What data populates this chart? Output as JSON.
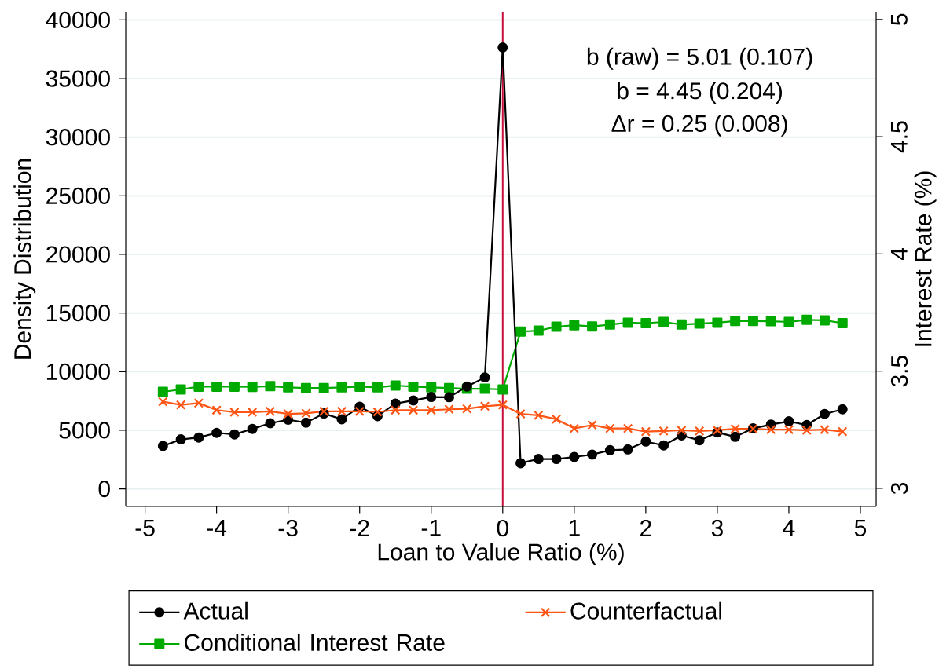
{
  "chart_data": {
    "type": "line",
    "xlabel": "Loan to Value Ratio (%)",
    "ylabel": "Density Distribution",
    "y2label": "Interest Rate (%)",
    "x": [
      -4.75,
      -4.5,
      -4.25,
      -4.0,
      -3.75,
      -3.5,
      -3.25,
      -3.0,
      -2.75,
      -2.5,
      -2.25,
      -2.0,
      -1.75,
      -1.5,
      -1.25,
      -1.0,
      -0.75,
      -0.5,
      -0.25,
      0,
      0.25,
      0.5,
      0.75,
      1.0,
      1.25,
      1.5,
      1.75,
      2.0,
      2.25,
      2.5,
      2.75,
      3.0,
      3.25,
      3.5,
      3.75,
      4.0,
      4.25,
      4.5,
      4.75
    ],
    "series": [
      {
        "name": "Actual",
        "color": "#000000",
        "marker": "circle",
        "values": [
          3660,
          4220,
          4380,
          4780,
          4650,
          5120,
          5600,
          5900,
          5650,
          6430,
          5940,
          7010,
          6210,
          7280,
          7550,
          7840,
          7820,
          8730,
          9510,
          37650,
          2190,
          2550,
          2550,
          2720,
          2920,
          3300,
          3370,
          4040,
          3710,
          4560,
          4150,
          4820,
          4440,
          5160,
          5490,
          5760,
          5450,
          6390,
          6790
        ]
      },
      {
        "name": "Counterfactual",
        "color": "#ff5514",
        "marker": "cross",
        "values": [
          7440,
          7170,
          7320,
          6720,
          6540,
          6540,
          6610,
          6390,
          6450,
          6610,
          6610,
          6610,
          6570,
          6720,
          6720,
          6720,
          6790,
          6830,
          7050,
          7170,
          6390,
          6280,
          5940,
          5160,
          5450,
          5160,
          5160,
          4890,
          4940,
          5000,
          4940,
          5000,
          5120,
          5120,
          5050,
          5050,
          5000,
          5050,
          4890
        ]
      },
      {
        "name": "Conditional Interest Rate",
        "color": "#00aa00",
        "marker": "square",
        "axis": "y2",
        "values": [
          3.412,
          3.422,
          3.434,
          3.434,
          3.434,
          3.433,
          3.436,
          3.431,
          3.428,
          3.428,
          3.431,
          3.434,
          3.431,
          3.439,
          3.434,
          3.431,
          3.428,
          3.425,
          3.425,
          3.422,
          3.669,
          3.673,
          3.69,
          3.696,
          3.691,
          3.699,
          3.707,
          3.705,
          3.71,
          3.699,
          3.703,
          3.707,
          3.714,
          3.714,
          3.713,
          3.71,
          3.719,
          3.717,
          3.705
        ]
      }
    ],
    "xlim": [
      -5.27,
      5.22
    ],
    "xticks": [
      -5,
      -4,
      -3,
      -2,
      -1,
      0,
      1,
      2,
      3,
      4,
      5
    ],
    "ylim": [
      -1500,
      40700
    ],
    "yticks": [
      0,
      5000,
      10000,
      15000,
      20000,
      25000,
      30000,
      35000,
      40000
    ],
    "y2lim": [
      2.923,
      5.033
    ],
    "y2ticks": [
      3,
      3.5,
      4,
      4.5,
      5
    ],
    "ref_lines": [
      {
        "axis": "x",
        "value": 0,
        "color": "#c8103c"
      }
    ],
    "annotations": [
      "b (raw) = 5.01 (0.107)",
      "b = 4.45 (0.204)",
      "Δr = 0.25 (0.008)"
    ],
    "grid": "y",
    "legend": "bottom",
    "line_style": "solid"
  }
}
